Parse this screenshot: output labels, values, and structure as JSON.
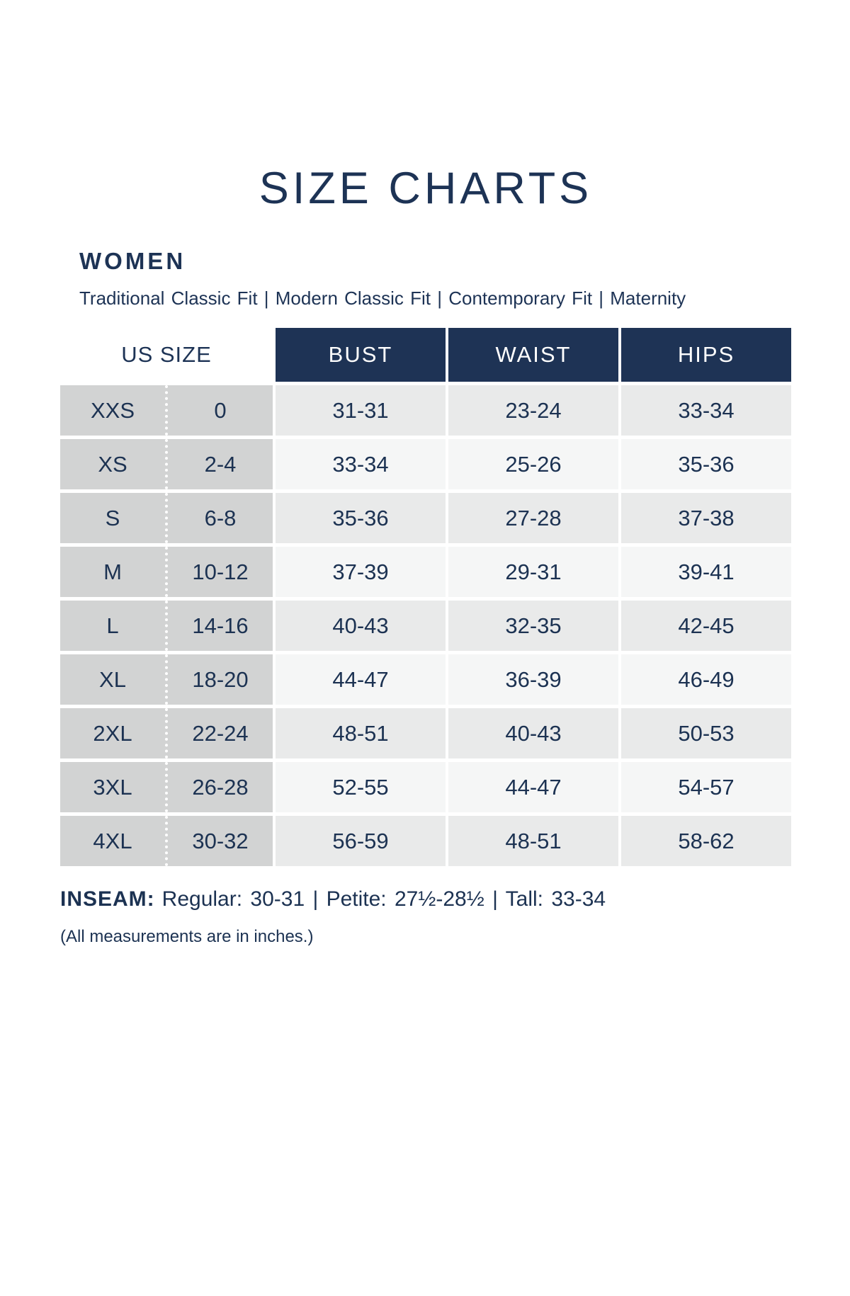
{
  "page": {
    "title": "SIZE CHARTS",
    "section_heading": "WOMEN",
    "fits": [
      "Traditional Classic Fit",
      "Modern Classic Fit",
      "Contemporary Fit",
      "Maternity"
    ],
    "fits_text": "Traditional Classic Fit | Modern Classic Fit | Contemporary Fit | Maternity",
    "inseam": {
      "label": "INSEAM:",
      "regular": "Regular: 30-31",
      "petite": "Petite: 27½-28½",
      "tall": "Tall: 33-34",
      "text": "Regular: 30-31 | Petite: 27½-28½ | Tall: 33-34"
    },
    "footnote": "(All measurements are in inches.)"
  },
  "table": {
    "headers": {
      "us_size": "US SIZE",
      "bust": "BUST",
      "waist": "WAIST",
      "hips": "HIPS"
    },
    "rows": [
      {
        "size": "XXS",
        "us": "0",
        "bust": "31-31",
        "waist": "23-24",
        "hips": "33-34"
      },
      {
        "size": "XS",
        "us": "2-4",
        "bust": "33-34",
        "waist": "25-26",
        "hips": "35-36"
      },
      {
        "size": "S",
        "us": "6-8",
        "bust": "35-36",
        "waist": "27-28",
        "hips": "37-38"
      },
      {
        "size": "M",
        "us": "10-12",
        "bust": "37-39",
        "waist": "29-31",
        "hips": "39-41"
      },
      {
        "size": "L",
        "us": "14-16",
        "bust": "40-43",
        "waist": "32-35",
        "hips": "42-45"
      },
      {
        "size": "XL",
        "us": "18-20",
        "bust": "44-47",
        "waist": "36-39",
        "hips": "46-49"
      },
      {
        "size": "2XL",
        "us": "22-24",
        "bust": "48-51",
        "waist": "40-43",
        "hips": "50-53"
      },
      {
        "size": "3XL",
        "us": "26-28",
        "bust": "52-55",
        "waist": "44-47",
        "hips": "54-57"
      },
      {
        "size": "4XL",
        "us": "30-32",
        "bust": "56-59",
        "waist": "48-51",
        "hips": "58-62"
      }
    ]
  },
  "chart_data": {
    "type": "table",
    "title": "SIZE CHARTS",
    "subtitle": "WOMEN — Traditional Classic Fit | Modern Classic Fit | Contemporary Fit | Maternity",
    "columns": [
      "US SIZE",
      "US SIZE (numeric)",
      "BUST",
      "WAIST",
      "HIPS"
    ],
    "rows": [
      [
        "XXS",
        "0",
        "31-31",
        "23-24",
        "33-34"
      ],
      [
        "XS",
        "2-4",
        "33-34",
        "25-26",
        "35-36"
      ],
      [
        "S",
        "6-8",
        "35-36",
        "27-28",
        "37-38"
      ],
      [
        "M",
        "10-12",
        "37-39",
        "29-31",
        "39-41"
      ],
      [
        "L",
        "14-16",
        "40-43",
        "32-35",
        "42-45"
      ],
      [
        "XL",
        "18-20",
        "44-47",
        "36-39",
        "46-49"
      ],
      [
        "2XL",
        "22-24",
        "48-51",
        "40-43",
        "50-53"
      ],
      [
        "3XL",
        "26-28",
        "52-55",
        "44-47",
        "54-57"
      ],
      [
        "4XL",
        "30-32",
        "56-59",
        "48-51",
        "58-62"
      ]
    ],
    "annotations": [
      "INSEAM: Regular: 30-31 | Petite: 27½-28½ | Tall: 33-34",
      "(All measurements are in inches.)"
    ],
    "units": "inches"
  },
  "colors": {
    "header_navy": "#1e3355",
    "text_navy": "#1c3252",
    "size_column_gray": "#d2d3d3",
    "row_shaded": "#e9eaea",
    "row_light": "#f5f6f6",
    "background": "#ffffff"
  }
}
